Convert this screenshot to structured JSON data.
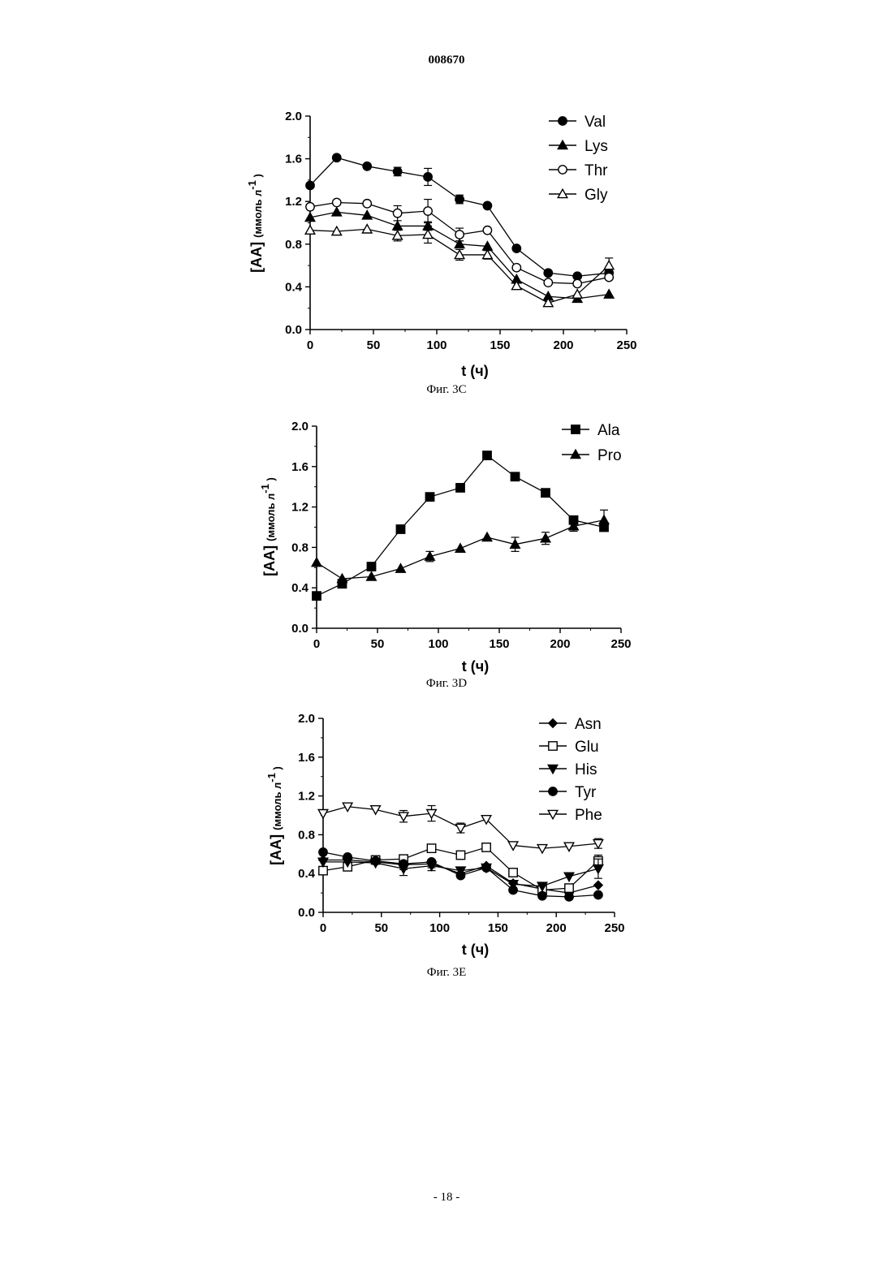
{
  "header": {
    "doc_number": "008670"
  },
  "footer": {
    "page_number": "- 18 -"
  },
  "chart_data": [
    {
      "type": "line",
      "caption": "Фиг. 3С",
      "xlabel": "t (ч)",
      "ylabel_main": "[AA]",
      "ylabel_unit": "(ммоль л",
      "ylabel_sup": "-1",
      "ylabel_close": ")",
      "xlim": [
        0,
        250
      ],
      "ylim": [
        0,
        2.0
      ],
      "xticks": [
        0,
        50,
        100,
        150,
        200,
        250
      ],
      "yticks": [
        "0.0",
        "0.4",
        "0.8",
        "1.2",
        "1.6",
        "2.0"
      ],
      "grid": false,
      "legend_position": "top-right",
      "x": [
        0,
        21,
        45,
        69,
        93,
        118,
        140,
        163,
        188,
        211,
        236
      ],
      "series": [
        {
          "name": "Val",
          "marker": "circle-filled",
          "values": [
            1.35,
            1.61,
            1.53,
            1.48,
            1.43,
            1.22,
            1.16,
            0.76,
            0.53,
            0.5,
            0.53
          ],
          "err": [
            0,
            0,
            0,
            0.04,
            0.08,
            0.04,
            0,
            0,
            0,
            0,
            0
          ]
        },
        {
          "name": "Lys",
          "marker": "triangle-up-filled",
          "values": [
            1.05,
            1.1,
            1.07,
            0.97,
            0.97,
            0.8,
            0.78,
            0.47,
            0.31,
            0.29,
            0.33
          ],
          "err": [
            0,
            0,
            0,
            0,
            0.04,
            0.03,
            0,
            0,
            0,
            0,
            0
          ]
        },
        {
          "name": "Thr",
          "marker": "circle-open",
          "values": [
            1.15,
            1.19,
            1.18,
            1.09,
            1.11,
            0.89,
            0.93,
            0.58,
            0.44,
            0.43,
            0.49
          ],
          "err": [
            0,
            0,
            0,
            0.07,
            0.11,
            0.06,
            0,
            0,
            0,
            0,
            0
          ]
        },
        {
          "name": "Gly",
          "marker": "triangle-up-open",
          "values": [
            0.93,
            0.92,
            0.94,
            0.88,
            0.89,
            0.7,
            0.7,
            0.41,
            0.25,
            0.33,
            0.6
          ],
          "err": [
            0,
            0,
            0,
            0.05,
            0.08,
            0.05,
            0.04,
            0,
            0,
            0,
            0.07
          ]
        }
      ]
    },
    {
      "type": "line",
      "caption": "Фиг. 3D",
      "xlabel": "t (ч)",
      "ylabel_main": "[AA]",
      "ylabel_unit": "(ммоль л",
      "ylabel_sup": "-1",
      "ylabel_close": ")",
      "xlim": [
        0,
        250
      ],
      "ylim": [
        0,
        2.0
      ],
      "xticks": [
        0,
        50,
        100,
        150,
        200,
        250
      ],
      "yticks": [
        "0.0",
        "0.4",
        "0.8",
        "1.2",
        "1.6",
        "2.0"
      ],
      "grid": false,
      "legend_position": "top-right",
      "x": [
        0,
        21,
        45,
        69,
        93,
        118,
        140,
        163,
        188,
        211,
        236
      ],
      "series": [
        {
          "name": "Ala",
          "marker": "square-filled",
          "values": [
            0.32,
            0.44,
            0.61,
            0.98,
            1.3,
            1.39,
            1.71,
            1.5,
            1.34,
            1.07,
            1.0
          ],
          "err": [
            0,
            0,
            0,
            0,
            0,
            0,
            0,
            0,
            0,
            0,
            0
          ]
        },
        {
          "name": "Pro",
          "marker": "triangle-up-filled",
          "values": [
            0.65,
            0.49,
            0.51,
            0.59,
            0.71,
            0.79,
            0.9,
            0.83,
            0.89,
            1.01,
            1.07
          ],
          "err": [
            0,
            0,
            0,
            0,
            0.05,
            0,
            0,
            0.07,
            0.06,
            0.05,
            0.1
          ]
        }
      ]
    },
    {
      "type": "line",
      "caption": "Фиг. 3Е",
      "xlabel": "t (ч)",
      "ylabel_main": "[AA]",
      "ylabel_unit": "(ммоль л",
      "ylabel_sup": "-1",
      "ylabel_close": ")",
      "xlim": [
        0,
        250
      ],
      "ylim": [
        0,
        2.0
      ],
      "xticks": [
        0,
        50,
        100,
        150,
        200,
        250
      ],
      "yticks": [
        "0.0",
        "0.4",
        "0.8",
        "1.2",
        "1.6",
        "2.0"
      ],
      "grid": false,
      "legend_position": "top-right",
      "x": [
        0,
        21,
        45,
        69,
        93,
        118,
        140,
        163,
        188,
        211,
        236
      ],
      "series": [
        {
          "name": "Asn",
          "marker": "diamond-filled",
          "values": [
            0.54,
            0.54,
            0.52,
            0.49,
            0.5,
            0.4,
            0.48,
            0.3,
            0.24,
            0.2,
            0.28
          ],
          "err": [
            0,
            0,
            0,
            0.05,
            0.04,
            0,
            0,
            0,
            0,
            0,
            0
          ]
        },
        {
          "name": "Glu",
          "marker": "square-open",
          "values": [
            0.43,
            0.47,
            0.54,
            0.55,
            0.66,
            0.59,
            0.67,
            0.41,
            0.23,
            0.25,
            0.53
          ],
          "err": [
            0,
            0,
            0,
            0.03,
            0.04,
            0,
            0,
            0,
            0,
            0,
            0.06
          ]
        },
        {
          "name": "His",
          "marker": "triangle-down-filled",
          "values": [
            0.52,
            0.52,
            0.51,
            0.45,
            0.48,
            0.43,
            0.46,
            0.29,
            0.27,
            0.37,
            0.45
          ],
          "err": [
            0,
            0,
            0,
            0.07,
            0.05,
            0,
            0,
            0,
            0,
            0,
            0.1
          ]
        },
        {
          "name": "Tyr",
          "marker": "circle-filled",
          "values": [
            0.62,
            0.57,
            0.53,
            0.5,
            0.52,
            0.38,
            0.46,
            0.23,
            0.17,
            0.16,
            0.18
          ],
          "err": [
            0,
            0,
            0,
            0,
            0,
            0,
            0,
            0,
            0,
            0,
            0
          ]
        },
        {
          "name": "Phe",
          "marker": "triangle-down-open",
          "values": [
            1.02,
            1.09,
            1.06,
            0.99,
            1.02,
            0.87,
            0.96,
            0.69,
            0.66,
            0.68,
            0.71
          ],
          "err": [
            0,
            0,
            0,
            0.06,
            0.08,
            0.05,
            0,
            0,
            0,
            0,
            0.05
          ]
        }
      ]
    }
  ]
}
